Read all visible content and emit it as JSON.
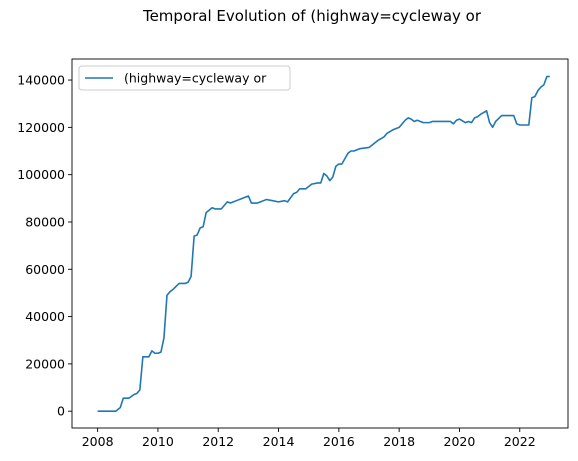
{
  "chart_data": {
    "type": "line",
    "title": "Temporal Evolution of (highway=cycleway or",
    "xlabel": "",
    "ylabel": "",
    "xlim": [
      2007.15,
      2023.6
    ],
    "ylim": [
      -7100,
      148900
    ],
    "xticks": [
      2008,
      2010,
      2012,
      2014,
      2016,
      2018,
      2020,
      2022
    ],
    "yticks": [
      0,
      20000,
      40000,
      60000,
      80000,
      100000,
      120000,
      140000
    ],
    "grid": false,
    "legend_position": "upper left",
    "series": [
      {
        "name": "(highway=cycleway or",
        "color": "#1f77b4",
        "x": [
          2008.0,
          2008.3,
          2008.5,
          2008.6,
          2008.75,
          2008.85,
          2009.0,
          2009.05,
          2009.2,
          2009.3,
          2009.4,
          2009.5,
          2009.7,
          2009.8,
          2009.9,
          2010.0,
          2010.1,
          2010.2,
          2010.3,
          2010.4,
          2010.5,
          2010.7,
          2010.9,
          2011.0,
          2011.1,
          2011.2,
          2011.3,
          2011.4,
          2011.5,
          2011.6,
          2011.7,
          2011.8,
          2011.9,
          2012.0,
          2012.1,
          2012.3,
          2012.4,
          2012.5,
          2012.6,
          2012.8,
          2012.9,
          2013.0,
          2013.1,
          2013.3,
          2013.4,
          2013.5,
          2013.6,
          2013.8,
          2014.0,
          2014.2,
          2014.3,
          2014.5,
          2014.6,
          2014.7,
          2014.9,
          2015.1,
          2015.3,
          2015.4,
          2015.5,
          2015.6,
          2015.7,
          2015.8,
          2015.9,
          2016.0,
          2016.1,
          2016.3,
          2016.4,
          2016.5,
          2016.7,
          2017.0,
          2017.1,
          2017.3,
          2017.5,
          2017.6,
          2017.8,
          2017.9,
          2018.0,
          2018.2,
          2018.3,
          2018.4,
          2018.5,
          2018.6,
          2018.8,
          2019.0,
          2019.1,
          2019.3,
          2019.5,
          2019.7,
          2019.8,
          2019.9,
          2020.0,
          2020.2,
          2020.3,
          2020.4,
          2020.5,
          2020.6,
          2020.7,
          2020.9,
          2021.0,
          2021.1,
          2021.2,
          2021.4,
          2021.5,
          2021.8,
          2021.9,
          2022.0,
          2022.3,
          2022.4,
          2022.5,
          2022.6,
          2022.7,
          2022.8,
          2022.9,
          2023.0
        ],
        "y": [
          0,
          0,
          0,
          0,
          1500,
          5500,
          5500,
          5600,
          7000,
          7500,
          9000,
          23000,
          23000,
          25500,
          24500,
          24500,
          25000,
          31000,
          49000,
          50500,
          51500,
          54000,
          54000,
          54500,
          57000,
          74000,
          74500,
          77500,
          78000,
          84000,
          85000,
          86000,
          85500,
          85500,
          85500,
          88500,
          88000,
          88500,
          89000,
          90000,
          90500,
          91000,
          88000,
          88000,
          88500,
          89000,
          89500,
          89000,
          88500,
          89000,
          88500,
          92000,
          92500,
          94000,
          94000,
          96000,
          96500,
          96500,
          100500,
          99500,
          97500,
          99000,
          103500,
          104500,
          104500,
          109000,
          110000,
          110000,
          111000,
          111500,
          112500,
          114500,
          116000,
          117500,
          119000,
          119500,
          120000,
          123000,
          124000,
          123500,
          122500,
          123000,
          122000,
          122000,
          122500,
          122500,
          122500,
          122500,
          121500,
          123000,
          123500,
          122000,
          122500,
          122000,
          124000,
          124500,
          125500,
          127000,
          122000,
          120000,
          122500,
          125000,
          125000,
          125000,
          121500,
          121000,
          121000,
          132500,
          133000,
          135500,
          137000,
          138000,
          141500,
          141500
        ]
      }
    ]
  }
}
